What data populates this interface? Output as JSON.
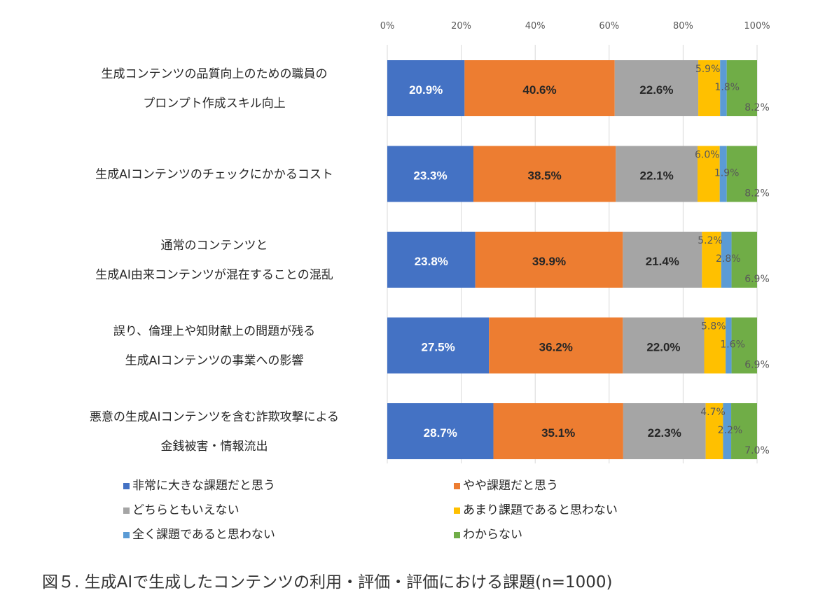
{
  "caption": "図５. 生成AIで生成したコンテンツの利用・評価・評価における課題(n=1000)",
  "chart_data": {
    "type": "bar",
    "orientation": "horizontal",
    "stacked": true,
    "percent": true,
    "xlim": [
      0,
      100
    ],
    "x_ticks": [
      "0%",
      "20%",
      "40%",
      "60%",
      "80%",
      "100%"
    ],
    "grid": true,
    "legend_position": "bottom",
    "categories": [
      [
        "生成コンテンツの品質向上のための職員の",
        "プロンプト作成スキル向上"
      ],
      [
        "生成AIコンテンツのチェックにかかるコスト"
      ],
      [
        "通常のコンテンツと",
        "生成AI由来コンテンツが混在することの混乱"
      ],
      [
        "誤り、倫理上や知財献上の問題が残る",
        "生成AIコンテンツの事業への影響"
      ],
      [
        "悪意の生成AIコンテンツを含む詐欺攻撃による",
        "金銭被害・情報流出"
      ]
    ],
    "series": [
      {
        "name": "非常に大きな課題だと思う",
        "color": "#4472C4",
        "values": [
          20.9,
          23.3,
          23.8,
          27.5,
          28.7
        ],
        "labels": [
          "20.9%",
          "23.3%",
          "23.8%",
          "27.5%",
          "28.7%"
        ],
        "label_color": "#ffffff"
      },
      {
        "name": "やや課題だと思う",
        "color": "#ED7D31",
        "values": [
          40.6,
          38.5,
          39.9,
          36.2,
          35.1
        ],
        "labels": [
          "40.6%",
          "38.5%",
          "39.9%",
          "36.2%",
          "35.1%"
        ],
        "label_color": "#262626"
      },
      {
        "name": "どちらともいえない",
        "color": "#A5A5A5",
        "values": [
          22.6,
          22.1,
          21.4,
          22.0,
          22.3
        ],
        "labels": [
          "22.6%",
          "22.1%",
          "21.4%",
          "22.0%",
          "22.3%"
        ],
        "label_color": "#262626"
      },
      {
        "name": "あまり課題であると思わない",
        "color": "#FFC000",
        "values": [
          5.9,
          6.0,
          5.2,
          5.8,
          4.7
        ],
        "labels": [
          "5.9%",
          "6.0%",
          "5.2%",
          "5.8%",
          "4.7%"
        ]
      },
      {
        "name": "全く課題であると思わない",
        "color": "#5B9BD5",
        "values": [
          1.8,
          1.9,
          2.8,
          1.6,
          2.2
        ],
        "labels": [
          "1.8%",
          "1.9%",
          "2.8%",
          "1.6%",
          "2.2%"
        ]
      },
      {
        "name": "わからない",
        "color": "#70AD47",
        "values": [
          8.2,
          8.2,
          6.9,
          6.9,
          7.0
        ],
        "labels": [
          "8.2%",
          "8.2%",
          "6.9%",
          "6.9%",
          "7.0%"
        ]
      }
    ]
  }
}
